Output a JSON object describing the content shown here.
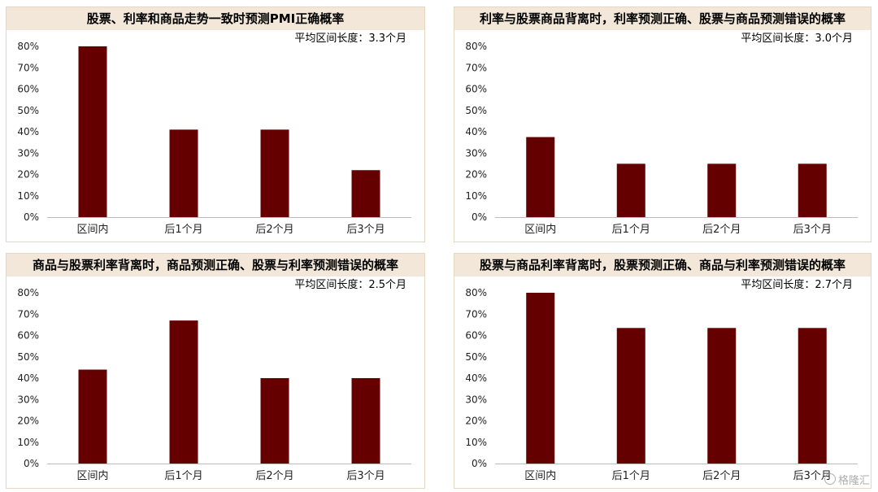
{
  "colors": {
    "bar": "#650000",
    "title_bg": "#f2e7d8",
    "axis": "#bdbdbd"
  },
  "watermark": {
    "text": "格隆汇",
    "icon": "gelonghui-logo-icon"
  },
  "chart_data": [
    {
      "type": "bar",
      "title": "股票、利率和商品走势一致时预测PMI正确概率",
      "annotation": "平均区间长度：3.3个月",
      "categories": [
        "区间内",
        "后1个月",
        "后2个月",
        "后3个月"
      ],
      "values": [
        80,
        41,
        41,
        22
      ],
      "unit": "%",
      "ylim": [
        0,
        80
      ],
      "yticks": [
        "0%",
        "10%",
        "20%",
        "30%",
        "40%",
        "50%",
        "60%",
        "70%",
        "80%"
      ]
    },
    {
      "type": "bar",
      "title": "利率与股票商品背离时，利率预测正确、股票与商品预测错误的概率",
      "annotation": "平均区间长度：3.0个月",
      "categories": [
        "区间内",
        "后1个月",
        "后2个月",
        "后3个月"
      ],
      "values": [
        37.5,
        25,
        25,
        25
      ],
      "unit": "%",
      "ylim": [
        0,
        80
      ],
      "yticks": [
        "0%",
        "10%",
        "20%",
        "30%",
        "40%",
        "50%",
        "60%",
        "70%",
        "80%"
      ]
    },
    {
      "type": "bar",
      "title": "商品与股票利率背离时，商品预测正确、股票与利率预测错误的概率",
      "annotation": "平均区间长度：2.5个月",
      "categories": [
        "区间内",
        "后1个月",
        "后2个月",
        "后3个月"
      ],
      "values": [
        44,
        67,
        40,
        40
      ],
      "unit": "%",
      "ylim": [
        0,
        80
      ],
      "yticks": [
        "0%",
        "10%",
        "20%",
        "30%",
        "40%",
        "50%",
        "60%",
        "70%",
        "80%"
      ]
    },
    {
      "type": "bar",
      "title": "股票与商品利率背离时，股票预测正确、商品与利率预测错误的概率",
      "annotation": "平均区间长度：2.7个月",
      "categories": [
        "区间内",
        "后1个月",
        "后2个月",
        "后3个月"
      ],
      "values": [
        80,
        63.5,
        63.5,
        63.5
      ],
      "unit": "%",
      "ylim": [
        0,
        80
      ],
      "yticks": [
        "0%",
        "10%",
        "20%",
        "30%",
        "40%",
        "50%",
        "60%",
        "70%",
        "80%"
      ]
    }
  ]
}
